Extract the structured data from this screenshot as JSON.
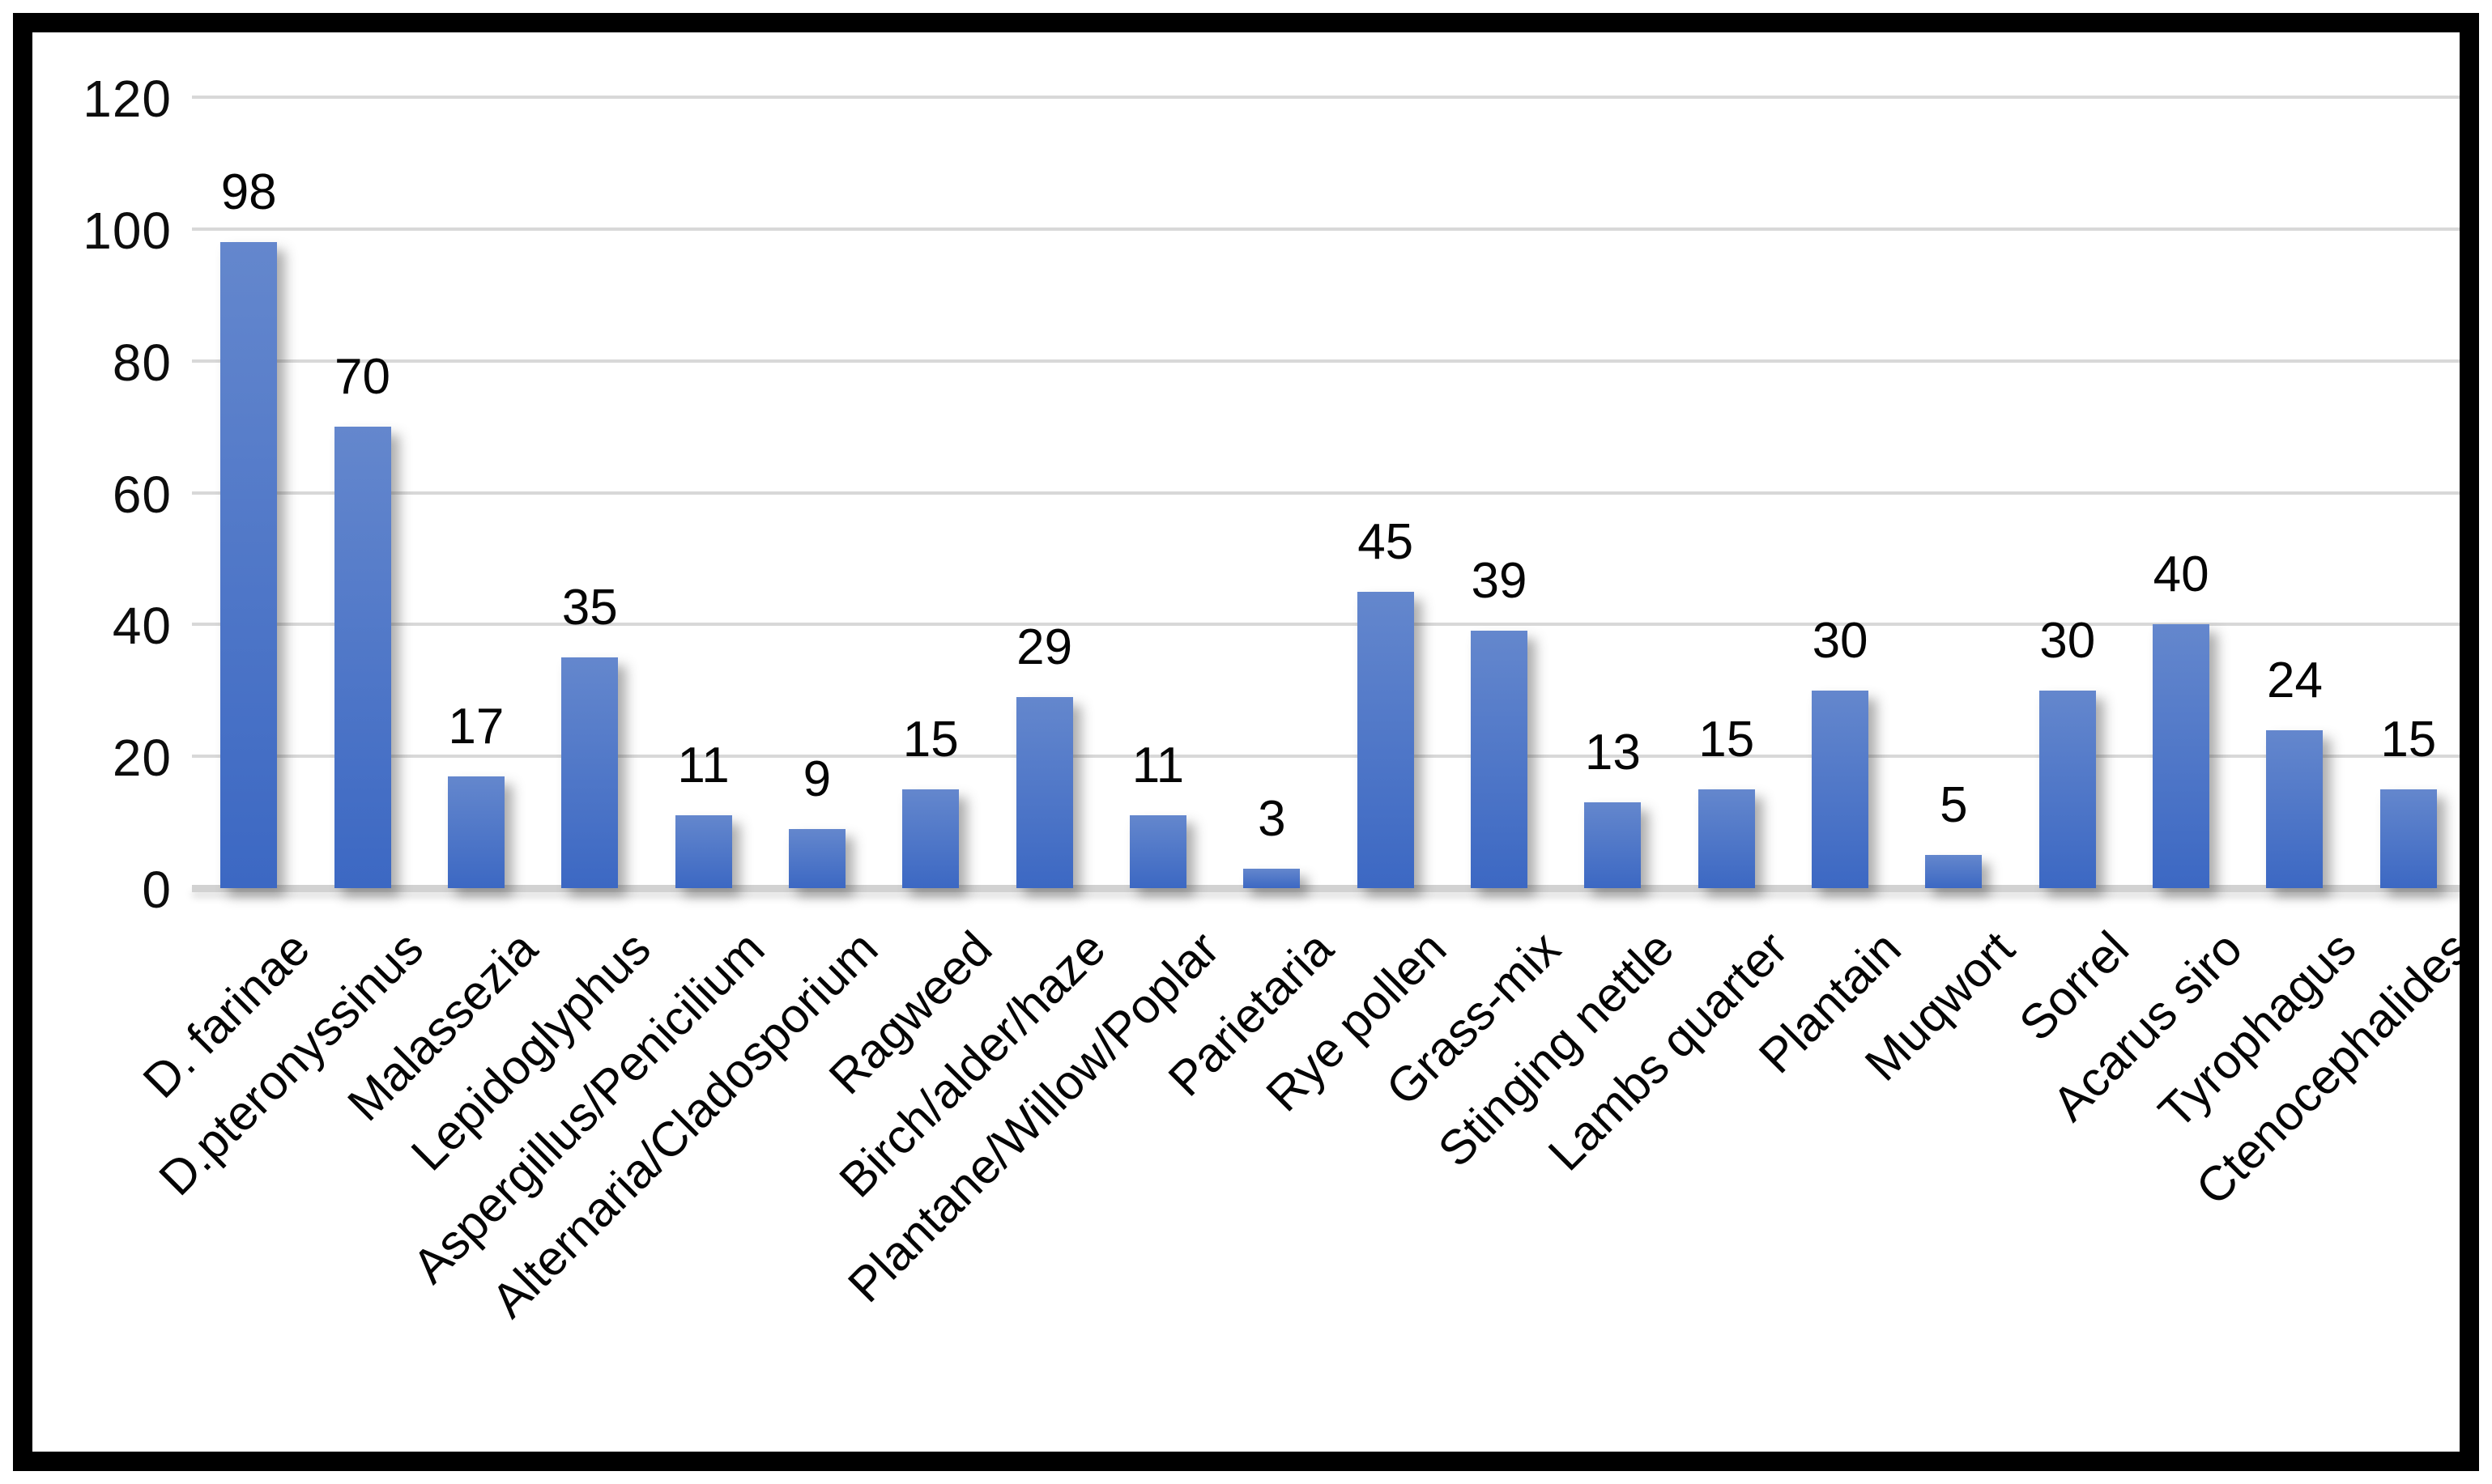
{
  "chart_data": {
    "type": "bar",
    "title": "",
    "xlabel": "",
    "ylabel": "",
    "categories": [
      "D. farinae",
      "D.pteronyssinus",
      "Malassezia",
      "Lepidoglyphus",
      "Aspergillus/Penicilium",
      "Alternaria/Cladosporium",
      "Ragweed",
      "Birch/alder/haze",
      "Plantane/Willow/Poplar",
      "Parietaria",
      "Rye pollen",
      "Grass-mix",
      "Stinging nettle",
      "Lambs quarter",
      "Plantain",
      "Muqwort",
      "Sorrel",
      "Acarus siro",
      "Tyrophagus",
      "Ctenocephalides"
    ],
    "values": [
      98,
      70,
      17,
      35,
      11,
      9,
      15,
      29,
      11,
      3,
      45,
      39,
      13,
      15,
      30,
      5,
      30,
      40,
      24,
      15
    ],
    "yticks": [
      0,
      20,
      40,
      60,
      80,
      100,
      120
    ],
    "ylim": [
      0,
      120
    ],
    "grid": true,
    "legend_position": "none",
    "data_labels": true,
    "colors": {
      "bar_gradient_top": "#6487cd",
      "bar_gradient_bottom": "#3c68c3",
      "gridline": "#d8d8d8",
      "axis_baseline": "#d2d2d2",
      "text": "#050505",
      "frame_border": "#000000",
      "background": "#ffffff"
    }
  }
}
